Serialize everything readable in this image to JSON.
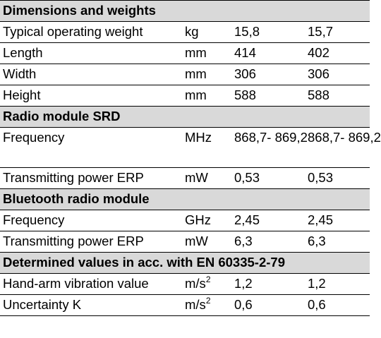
{
  "sections": [
    {
      "title": "Dimensions and weights",
      "rows": [
        {
          "label": "Typical operating weight",
          "unit": "kg",
          "v1": "15,8",
          "v2": "15,7"
        },
        {
          "label": "Length",
          "unit": "mm",
          "v1": "414",
          "v2": "402"
        },
        {
          "label": "Width",
          "unit": "mm",
          "v1": "306",
          "v2": "306"
        },
        {
          "label": "Height",
          "unit": "mm",
          "v1": "588",
          "v2": "588"
        }
      ]
    },
    {
      "title": "Radio module SRD",
      "rows": [
        {
          "label": "Frequency",
          "unit": "MHz",
          "v1": "868,7-\n869,2",
          "v2": "868,7-\n869,2"
        },
        {
          "label": "Transmitting power ERP",
          "unit": "mW",
          "v1": "0,53",
          "v2": "0,53"
        }
      ]
    },
    {
      "title": "Bluetooth radio module",
      "rows": [
        {
          "label": "Frequency",
          "unit": "GHz",
          "v1": "2,45",
          "v2": "2,45"
        },
        {
          "label": "Transmitting power ERP",
          "unit": "mW",
          "v1": "6,3",
          "v2": "6,3"
        }
      ]
    },
    {
      "title": "Determined values in acc. with EN 60335-2-79",
      "rows": [
        {
          "label": "Hand-arm vibration value",
          "unit_base": "m/s",
          "unit_sup": "2",
          "v1": "1,2",
          "v2": "1,2"
        },
        {
          "label": "Uncertainty K",
          "unit_base": "m/s",
          "unit_sup": "2",
          "v1": "0,6",
          "v2": "0,6"
        }
      ]
    }
  ],
  "colors": {
    "section_background": "#d9d9d9",
    "rule": "#000000",
    "text": "#000000"
  }
}
